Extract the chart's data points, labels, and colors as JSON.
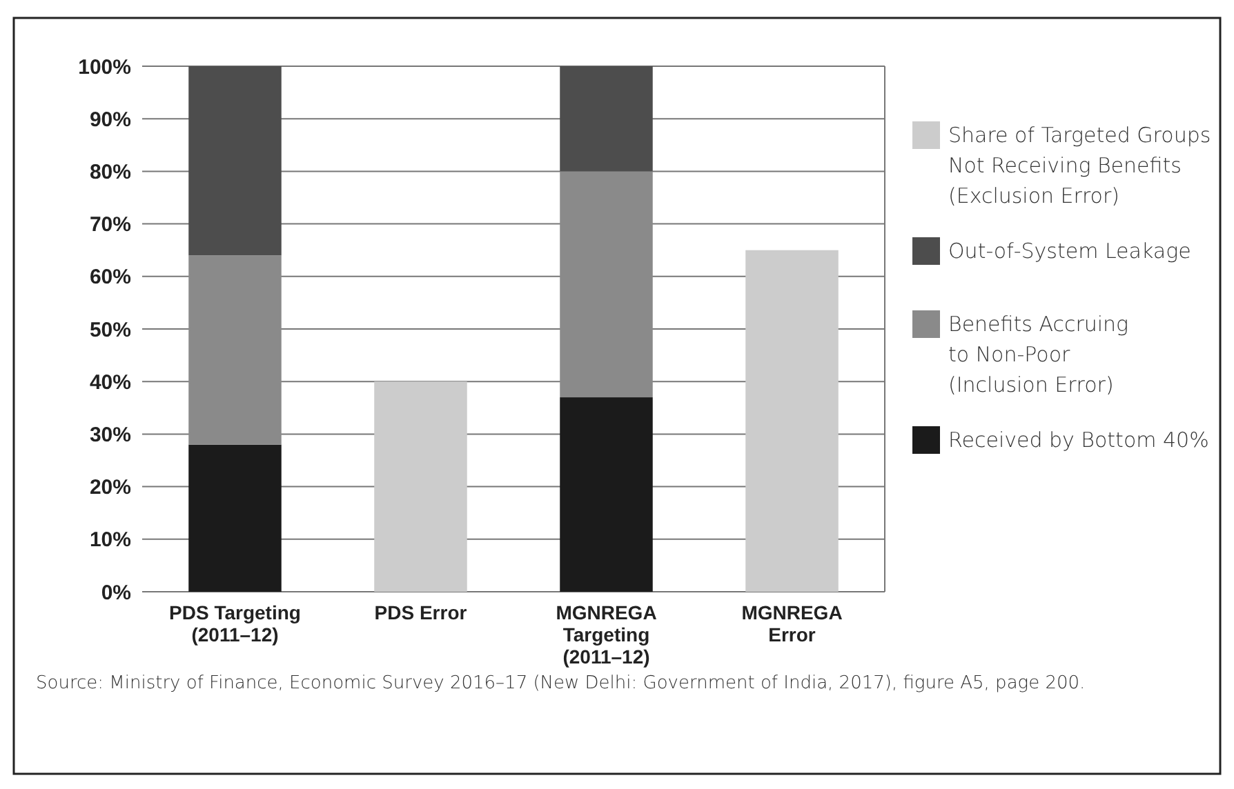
{
  "chart_data": {
    "type": "bar",
    "stacked": true,
    "categories": [
      "PDS Targeting\n(2011–12)",
      "PDS Error",
      "MGNREGA\nTargeting\n(2011–12)",
      "MGNREGA\nError"
    ],
    "series": [
      {
        "name": "Received by Bottom 40%",
        "color": "#1b1b1b",
        "values": [
          28,
          null,
          37,
          null
        ]
      },
      {
        "name": "Benefits Accruing\nto Non-Poor\n(Inclusion Error)",
        "color": "#8a8a8a",
        "values": [
          36,
          null,
          43,
          null
        ]
      },
      {
        "name": "Out-of-System Leakage",
        "color": "#4d4d4d",
        "values": [
          36,
          null,
          20,
          null
        ]
      },
      {
        "name": "Share of Targeted Groups\nNot Receiving Benefits\n(Exclusion Error)",
        "color": "#cccccc",
        "values": [
          null,
          40,
          null,
          65
        ]
      }
    ],
    "ylim": [
      0,
      100
    ],
    "yticks": [
      {
        "value": 0,
        "label": "0%"
      },
      {
        "value": 10,
        "label": "10%"
      },
      {
        "value": 20,
        "label": "20%"
      },
      {
        "value": 30,
        "label": "30%"
      },
      {
        "value": 40,
        "label": "40%"
      },
      {
        "value": 50,
        "label": "50%"
      },
      {
        "value": 60,
        "label": "60%"
      },
      {
        "value": 70,
        "label": "70%"
      },
      {
        "value": 80,
        "label": "80%"
      },
      {
        "value": 90,
        "label": "90%"
      },
      {
        "value": 100,
        "label": "100%"
      }
    ],
    "grid": "y",
    "legend": "right",
    "annotations": [
      "Source: Ministry of Finance, Economic Survey 2016–17 (New Delhi: Government of India, 2017), figure A5, page 200."
    ]
  }
}
